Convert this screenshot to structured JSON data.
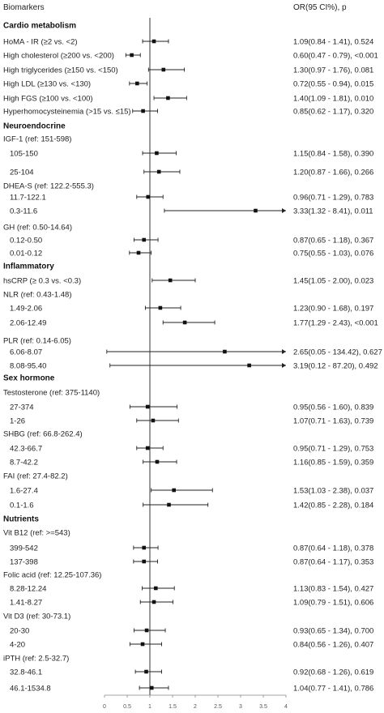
{
  "header": {
    "left": "Biomarkers",
    "right": "OR(95 CI%), p"
  },
  "chart_data": {
    "type": "forest",
    "title": "",
    "xlabel": "",
    "ylabel": "",
    "xlim": [
      0,
      4
    ],
    "xticks": [
      "0",
      "0.5",
      "1",
      "1.5",
      "2",
      "2.5",
      "3",
      "3.5",
      "4"
    ],
    "reference_line": 1,
    "rows": [
      {
        "kind": "section",
        "label": "Cardio metabolism"
      },
      {
        "kind": "item",
        "label": "HoMA - IR (≥2 vs. <2)",
        "or": 1.09,
        "lo": 0.84,
        "hi": 1.41,
        "text": "1.09(0.84 - 1.41), 0.524"
      },
      {
        "kind": "item",
        "label": "High cholesterol (≥200 vs. <200)",
        "or": 0.6,
        "lo": 0.47,
        "hi": 0.79,
        "text": "0.60(0.47 - 0.79), <0.001"
      },
      {
        "kind": "item",
        "label": "High triglycerides (≥150 vs. <150)",
        "or": 1.3,
        "lo": 0.97,
        "hi": 1.76,
        "text": "1.30(0.97 - 1.76), 0.081"
      },
      {
        "kind": "item",
        "label": "High LDL (≥130 vs. <130)",
        "or": 0.72,
        "lo": 0.55,
        "hi": 0.94,
        "text": "0.72(0.55 - 0.94), 0.015"
      },
      {
        "kind": "item",
        "label": "High FGS (≥100 vs. <100)",
        "or": 1.4,
        "lo": 1.09,
        "hi": 1.81,
        "text": "1.40(1.09 - 1.81), 0.010"
      },
      {
        "kind": "item",
        "label": "Hyperhomocysteinemia (>15 vs. ≤15)",
        "or": 0.85,
        "lo": 0.62,
        "hi": 1.17,
        "text": "0.85(0.62 - 1.17), 0.320"
      },
      {
        "kind": "section",
        "label": "Neuroendocrine"
      },
      {
        "kind": "ref",
        "label": "IGF-1 (ref: 151-598)"
      },
      {
        "kind": "item",
        "label": "105-150",
        "or": 1.15,
        "lo": 0.84,
        "hi": 1.58,
        "text": "1.15(0.84 - 1.58), 0.390"
      },
      {
        "kind": "item",
        "label": "25-104",
        "or": 1.2,
        "lo": 0.87,
        "hi": 1.66,
        "text": "1.20(0.87 - 1.66), 0.266"
      },
      {
        "kind": "ref",
        "label": "DHEA-S (ref: 122.2-555.3)"
      },
      {
        "kind": "item",
        "label": "11.7-122.1",
        "or": 0.96,
        "lo": 0.71,
        "hi": 1.29,
        "text": "0.96(0.71 - 1.29), 0.783"
      },
      {
        "kind": "item",
        "label": "0.3-11.6",
        "or": 3.33,
        "lo": 1.32,
        "hi": 8.41,
        "text": "3.33(1.32 - 8.41), 0.011"
      },
      {
        "kind": "ref",
        "label": "GH (ref: 0.50-14.64)"
      },
      {
        "kind": "item",
        "label": "0.12-0.50",
        "or": 0.87,
        "lo": 0.65,
        "hi": 1.18,
        "text": "0.87(0.65 - 1.18), 0.367"
      },
      {
        "kind": "item",
        "label": "0.01-0.12",
        "or": 0.75,
        "lo": 0.55,
        "hi": 1.03,
        "text": "0.75(0.55 - 1.03), 0.076"
      },
      {
        "kind": "section",
        "label": "Inflammatory"
      },
      {
        "kind": "item",
        "label": "hsCRP (≥ 0.3 vs. <0.3)",
        "or": 1.45,
        "lo": 1.05,
        "hi": 2.0,
        "text": "1.45(1.05 - 2.00), 0.023"
      },
      {
        "kind": "ref",
        "label": "NLR (ref: 0.43-1.48)"
      },
      {
        "kind": "item",
        "label": "1.49-2.06",
        "or": 1.23,
        "lo": 0.9,
        "hi": 1.68,
        "text": "1.23(0.90 - 1.68), 0.197"
      },
      {
        "kind": "item",
        "label": "2.06-12.49",
        "or": 1.77,
        "lo": 1.29,
        "hi": 2.43,
        "text": "1.77(1.29 - 2.43), <0.001"
      },
      {
        "kind": "ref",
        "label": "PLR (ref: 0.14-6.05)"
      },
      {
        "kind": "item",
        "label": "6.06-8.07",
        "or": 2.65,
        "lo": 0.05,
        "hi": 134.42,
        "text": "2.65(0.05 - 134.42), 0.627"
      },
      {
        "kind": "item",
        "label": "8.08-95.40",
        "or": 3.19,
        "lo": 0.12,
        "hi": 87.2,
        "text": "3.19(0.12 - 87.20), 0.492"
      },
      {
        "kind": "section",
        "label": "Sex hormone"
      },
      {
        "kind": "ref",
        "label": "Testosterone (ref: 375-1140)"
      },
      {
        "kind": "item",
        "label": "27-374",
        "or": 0.95,
        "lo": 0.56,
        "hi": 1.6,
        "text": "0.95(0.56 - 1.60), 0.839"
      },
      {
        "kind": "item",
        "label": "1-26",
        "or": 1.07,
        "lo": 0.71,
        "hi": 1.63,
        "text": "1.07(0.71 - 1.63), 0.739"
      },
      {
        "kind": "ref",
        "label": "SHBG (ref: 66.8-262.4)"
      },
      {
        "kind": "item",
        "label": "42.3-66.7",
        "or": 0.95,
        "lo": 0.71,
        "hi": 1.29,
        "text": "0.95(0.71 - 1.29), 0.753"
      },
      {
        "kind": "item",
        "label": "8.7-42.2",
        "or": 1.16,
        "lo": 0.85,
        "hi": 1.59,
        "text": "1.16(0.85 - 1.59), 0.359"
      },
      {
        "kind": "ref",
        "label": "FAI (ref: 27.4-82.2)"
      },
      {
        "kind": "item",
        "label": "1.6-27.4",
        "or": 1.53,
        "lo": 1.03,
        "hi": 2.38,
        "text": "1.53(1.03 - 2.38), 0.037"
      },
      {
        "kind": "item",
        "label": "0.1-1.6",
        "or": 1.42,
        "lo": 0.85,
        "hi": 2.28,
        "text": "1.42(0.85 - 2.28), 0.184"
      },
      {
        "kind": "section",
        "label": "Nutrients"
      },
      {
        "kind": "ref",
        "label": "Vit B12 (ref: >=543)"
      },
      {
        "kind": "item",
        "label": "399-542",
        "or": 0.87,
        "lo": 0.64,
        "hi": 1.18,
        "text": "0.87(0.64 - 1.18), 0.378"
      },
      {
        "kind": "item",
        "label": "137-398",
        "or": 0.87,
        "lo": 0.64,
        "hi": 1.17,
        "text": "0.87(0.64 - 1.17), 0.353"
      },
      {
        "kind": "ref",
        "label": "Folic acid (ref: 12.25-107.36)"
      },
      {
        "kind": "item",
        "label": "8.28-12.24",
        "or": 1.13,
        "lo": 0.83,
        "hi": 1.54,
        "text": "1.13(0.83 - 1.54), 0.427"
      },
      {
        "kind": "item",
        "label": "1.41-8.27",
        "or": 1.09,
        "lo": 0.79,
        "hi": 1.51,
        "text": "1.09(0.79 - 1.51), 0.606"
      },
      {
        "kind": "ref",
        "label": "Vit D3 (ref: 30-73.1)"
      },
      {
        "kind": "item",
        "label": "20-30",
        "or": 0.93,
        "lo": 0.65,
        "hi": 1.34,
        "text": "0.93(0.65 - 1.34), 0.700"
      },
      {
        "kind": "item",
        "label": "4-20",
        "or": 0.84,
        "lo": 0.56,
        "hi": 1.26,
        "text": "0.84(0.56 - 1.26), 0.407"
      },
      {
        "kind": "ref",
        "label": "iPTH (ref: 2.5-32.7)"
      },
      {
        "kind": "item",
        "label": "32.8-46.1",
        "or": 0.92,
        "lo": 0.68,
        "hi": 1.26,
        "text": "0.92(0.68 - 1.26), 0.619"
      },
      {
        "kind": "item",
        "label": "46.1-1534.8",
        "or": 1.04,
        "lo": 0.77,
        "hi": 1.41,
        "text": "1.04(0.77 - 1.41), 0.786"
      }
    ]
  }
}
